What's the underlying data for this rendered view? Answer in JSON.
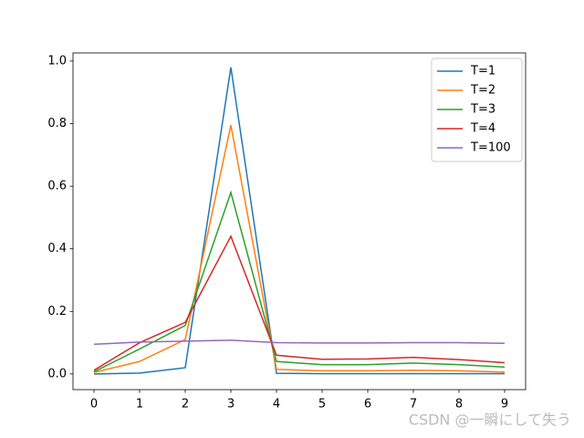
{
  "chart_data": {
    "type": "line",
    "x": [
      0,
      1,
      2,
      3,
      4,
      5,
      6,
      7,
      8,
      9
    ],
    "series": [
      {
        "name": "T=1",
        "color": "#1f77b4",
        "values": [
          0,
          0.003,
          0.02,
          0.98,
          0.002,
          0.001,
          0.001,
          0.001,
          0.001,
          0.001
        ]
      },
      {
        "name": "T=2",
        "color": "#ff7f0e",
        "values": [
          0.005,
          0.04,
          0.11,
          0.795,
          0.015,
          0.01,
          0.01,
          0.012,
          0.01,
          0.006
        ]
      },
      {
        "name": "T=3",
        "color": "#2ca02c",
        "values": [
          0.007,
          0.08,
          0.155,
          0.58,
          0.04,
          0.03,
          0.03,
          0.035,
          0.03,
          0.022
        ]
      },
      {
        "name": "T=4",
        "color": "#d62728",
        "values": [
          0.012,
          0.1,
          0.165,
          0.44,
          0.06,
          0.047,
          0.048,
          0.053,
          0.046,
          0.036
        ]
      },
      {
        "name": "T=100",
        "color": "#9467bd",
        "values": [
          0.095,
          0.102,
          0.105,
          0.108,
          0.1,
          0.099,
          0.099,
          0.1,
          0.1,
          0.098
        ]
      }
    ],
    "xlim": [
      -0.46,
      9.46
    ],
    "ylim": [
      -0.05,
      1.026
    ],
    "xticks": [
      0,
      1,
      2,
      3,
      4,
      5,
      6,
      7,
      8,
      9
    ],
    "yticks": [
      {
        "value": 0,
        "label": "0.0"
      },
      0.2,
      0.4,
      0.6,
      0.8,
      {
        "value": 1,
        "label": "1.0"
      }
    ],
    "legend": "upper right",
    "watermark": "CSDN @一瞬にして失う"
  }
}
